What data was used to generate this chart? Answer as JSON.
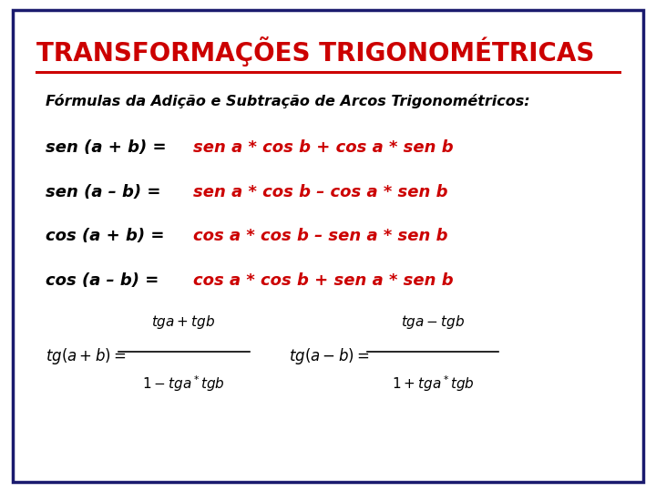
{
  "title": "TRANSFORMAÇÕES TRIGONOMÉTRICAS",
  "title_color": "#CC0000",
  "bg_color": "#FFFFFF",
  "border_color": "#1a1a6e",
  "subtitle": "Fórmulas da Adição e Subtração de Arcos Trigonométricos:",
  "subtitle_color": "#000000",
  "formulas": [
    {
      "left": "sen (a + b) = ",
      "right": "sen a * cos b + cos a * sen b",
      "left_color": "#000000",
      "right_color": "#CC0000"
    },
    {
      "left": "sen (a – b) = ",
      "right": "sen a * cos b – cos a * sen b",
      "left_color": "#000000",
      "right_color": "#CC0000"
    },
    {
      "left": "cos (a + b) = ",
      "right": "cos a * cos b – sen a * sen b",
      "left_color": "#000000",
      "right_color": "#CC0000"
    },
    {
      "left": "cos (a – b) = ",
      "right": "cos a * cos b + sen a * sen b",
      "left_color": "#000000",
      "right_color": "#CC0000"
    }
  ],
  "tg_color": "#000000",
  "title_fontsize": 20,
  "subtitle_fontsize": 11.5,
  "formula_fontsize": 13,
  "tg_fontsize": 12
}
